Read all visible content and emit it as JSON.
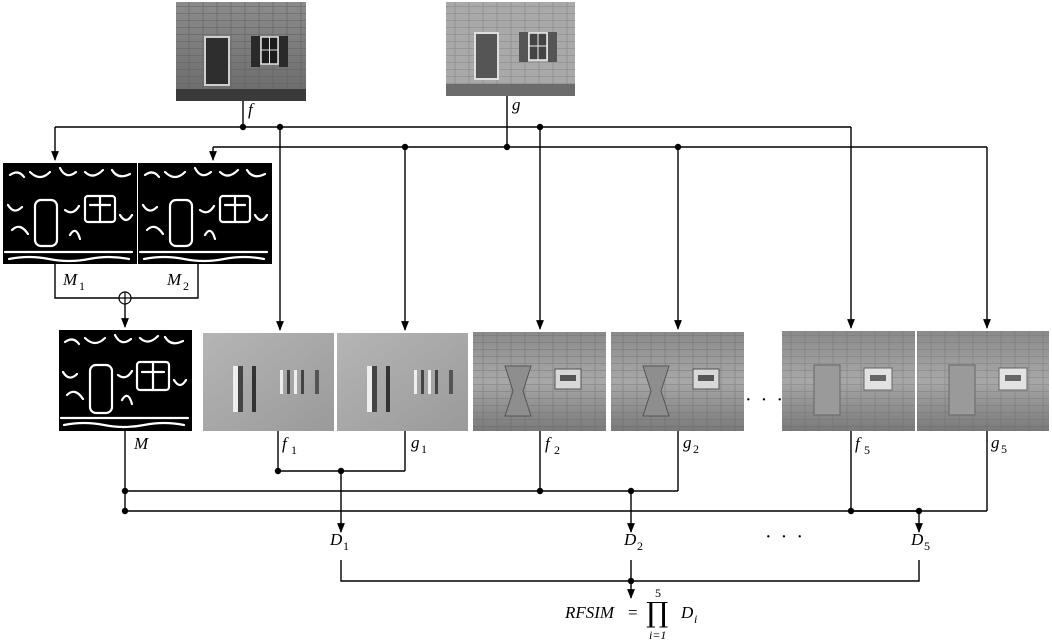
{
  "images": {
    "f": "f",
    "g": "g",
    "M1": "M",
    "M1_sub": "1",
    "M2": "M",
    "M2_sub": "2",
    "M": "M",
    "f1": "f",
    "f1_sub": "1",
    "g1": "g",
    "g1_sub": "1",
    "f2": "f",
    "f2_sub": "2",
    "g2": "g",
    "g2_sub": "2",
    "f5": "f",
    "f5_sub": "5",
    "g5": "g",
    "g5_sub": "5"
  },
  "outputs": {
    "D1": "D",
    "D1_sub": "1",
    "D2": "D",
    "D2_sub": "2",
    "D5": "D",
    "D5_sub": "5"
  },
  "ellipsis": "· · ·",
  "formula": {
    "lhs": "RFSIM",
    "eq": "=",
    "product": "∏",
    "upper": "5",
    "lower": "i=1",
    "term": "D",
    "term_sub": "i"
  }
}
